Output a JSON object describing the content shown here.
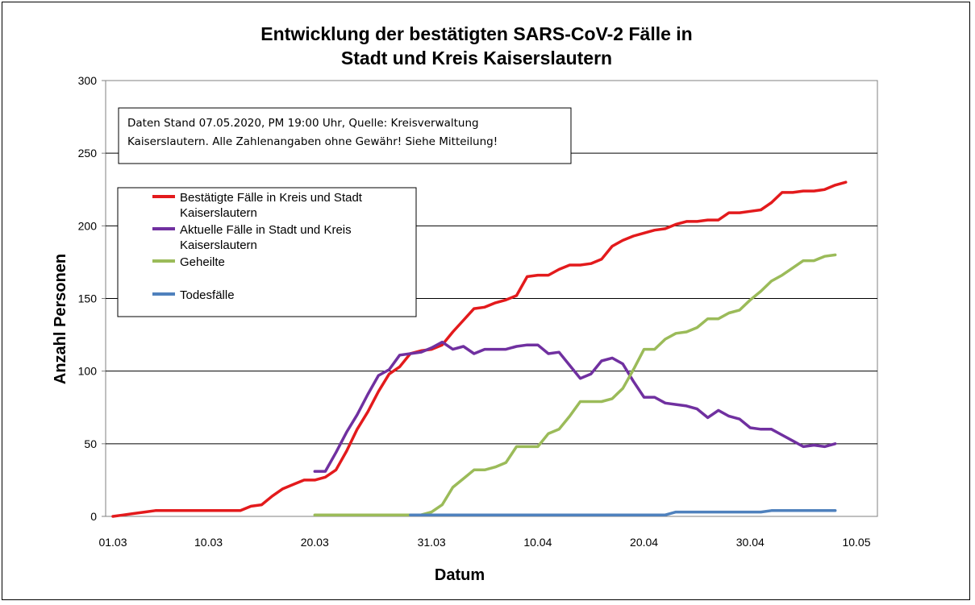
{
  "chart_data": {
    "type": "line",
    "title_line1": "Entwicklung der bestätigten SARS-CoV-2 Fälle in",
    "title_line2": "Stadt und Kreis Kaiserslautern",
    "xlabel": "Datum",
    "ylabel": "Anzahl Personen",
    "ylim": [
      0,
      300
    ],
    "y_ticks": [
      0,
      50,
      100,
      150,
      200,
      250,
      300
    ],
    "x_start": "2020-03-01",
    "x_end": "2020-05-10",
    "x_ticks": [
      {
        "label": "01.03",
        "date": "2020-03-01"
      },
      {
        "label": "10.03",
        "date": "2020-03-10"
      },
      {
        "label": "20.03",
        "date": "2020-03-20"
      },
      {
        "label": "31.03",
        "date": "2020-03-31"
      },
      {
        "label": "10.04",
        "date": "2020-04-10"
      },
      {
        "label": "20.04",
        "date": "2020-04-20"
      },
      {
        "label": "30.04",
        "date": "2020-04-30"
      },
      {
        "label": "10.05",
        "date": "2020-05-10"
      }
    ],
    "grid": "horizontal",
    "legend_position": "top-left",
    "note_line1": "Daten Stand 07.05.2020, PM 19:00 Uhr, Quelle: Kreisverwaltung",
    "note_line2": "Kaiserslautern. Alle Zahlenangaben ohne Gewähr! Siehe Mitteilung!",
    "series": [
      {
        "name": "Bestätigte Fälle in Kreis und Stadt Kaiserslautern",
        "legend_line1": "Bestätigte Fälle in Kreis und Stadt",
        "legend_line2": "Kaiserslautern",
        "color": "#e31a1c",
        "points": [
          [
            "2020-03-01",
            0
          ],
          [
            "2020-03-02",
            1
          ],
          [
            "2020-03-03",
            2
          ],
          [
            "2020-03-04",
            3
          ],
          [
            "2020-03-05",
            4
          ],
          [
            "2020-03-06",
            4
          ],
          [
            "2020-03-07",
            4
          ],
          [
            "2020-03-08",
            4
          ],
          [
            "2020-03-09",
            4
          ],
          [
            "2020-03-10",
            4
          ],
          [
            "2020-03-11",
            4
          ],
          [
            "2020-03-12",
            4
          ],
          [
            "2020-03-13",
            4
          ],
          [
            "2020-03-14",
            7
          ],
          [
            "2020-03-15",
            8
          ],
          [
            "2020-03-16",
            14
          ],
          [
            "2020-03-17",
            19
          ],
          [
            "2020-03-18",
            22
          ],
          [
            "2020-03-19",
            25
          ],
          [
            "2020-03-20",
            25
          ],
          [
            "2020-03-21",
            27
          ],
          [
            "2020-03-22",
            32
          ],
          [
            "2020-03-23",
            45
          ],
          [
            "2020-03-24",
            60
          ],
          [
            "2020-03-25",
            72
          ],
          [
            "2020-03-26",
            86
          ],
          [
            "2020-03-27",
            98
          ],
          [
            "2020-03-28",
            103
          ],
          [
            "2020-03-29",
            112
          ],
          [
            "2020-03-30",
            114
          ],
          [
            "2020-03-31",
            115
          ],
          [
            "2020-04-01",
            118
          ],
          [
            "2020-04-02",
            127
          ],
          [
            "2020-04-03",
            135
          ],
          [
            "2020-04-04",
            143
          ],
          [
            "2020-04-05",
            144
          ],
          [
            "2020-04-06",
            147
          ],
          [
            "2020-04-07",
            149
          ],
          [
            "2020-04-08",
            152
          ],
          [
            "2020-04-09",
            165
          ],
          [
            "2020-04-10",
            166
          ],
          [
            "2020-04-11",
            166
          ],
          [
            "2020-04-12",
            170
          ],
          [
            "2020-04-13",
            173
          ],
          [
            "2020-04-14",
            173
          ],
          [
            "2020-04-15",
            174
          ],
          [
            "2020-04-16",
            177
          ],
          [
            "2020-04-17",
            186
          ],
          [
            "2020-04-18",
            190
          ],
          [
            "2020-04-19",
            193
          ],
          [
            "2020-04-20",
            195
          ],
          [
            "2020-04-21",
            197
          ],
          [
            "2020-04-22",
            198
          ],
          [
            "2020-04-23",
            201
          ],
          [
            "2020-04-24",
            203
          ],
          [
            "2020-04-25",
            203
          ],
          [
            "2020-04-26",
            204
          ],
          [
            "2020-04-27",
            204
          ],
          [
            "2020-04-28",
            209
          ],
          [
            "2020-04-29",
            209
          ],
          [
            "2020-04-30",
            210
          ],
          [
            "2020-05-01",
            211
          ],
          [
            "2020-05-02",
            216
          ],
          [
            "2020-05-03",
            223
          ],
          [
            "2020-05-04",
            223
          ],
          [
            "2020-05-05",
            224
          ],
          [
            "2020-05-06",
            224
          ],
          [
            "2020-05-07",
            225
          ],
          [
            "2020-05-08",
            228
          ],
          [
            "2020-05-09",
            230
          ]
        ]
      },
      {
        "name": "Aktuelle Fälle in Stadt und Kreis Kaiserslautern",
        "legend_line1": "Aktuelle Fälle in Stadt und Kreis",
        "legend_line2": "Kaiserslautern",
        "color": "#7030a0",
        "points": [
          [
            "2020-03-20",
            31
          ],
          [
            "2020-03-21",
            31
          ],
          [
            "2020-03-22",
            44
          ],
          [
            "2020-03-23",
            58
          ],
          [
            "2020-03-24",
            70
          ],
          [
            "2020-03-25",
            84
          ],
          [
            "2020-03-26",
            97
          ],
          [
            "2020-03-27",
            101
          ],
          [
            "2020-03-28",
            111
          ],
          [
            "2020-03-29",
            112
          ],
          [
            "2020-03-30",
            113
          ],
          [
            "2020-03-31",
            116
          ],
          [
            "2020-04-01",
            120
          ],
          [
            "2020-04-02",
            115
          ],
          [
            "2020-04-03",
            117
          ],
          [
            "2020-04-04",
            112
          ],
          [
            "2020-04-05",
            115
          ],
          [
            "2020-04-06",
            115
          ],
          [
            "2020-04-07",
            115
          ],
          [
            "2020-04-08",
            117
          ],
          [
            "2020-04-09",
            118
          ],
          [
            "2020-04-10",
            118
          ],
          [
            "2020-04-11",
            112
          ],
          [
            "2020-04-12",
            113
          ],
          [
            "2020-04-13",
            104
          ],
          [
            "2020-04-14",
            95
          ],
          [
            "2020-04-15",
            98
          ],
          [
            "2020-04-16",
            107
          ],
          [
            "2020-04-17",
            109
          ],
          [
            "2020-04-18",
            105
          ],
          [
            "2020-04-19",
            93
          ],
          [
            "2020-04-20",
            82
          ],
          [
            "2020-04-21",
            82
          ],
          [
            "2020-04-22",
            78
          ],
          [
            "2020-04-23",
            77
          ],
          [
            "2020-04-24",
            76
          ],
          [
            "2020-04-25",
            74
          ],
          [
            "2020-04-26",
            68
          ],
          [
            "2020-04-27",
            73
          ],
          [
            "2020-04-28",
            69
          ],
          [
            "2020-04-29",
            67
          ],
          [
            "2020-04-30",
            61
          ],
          [
            "2020-05-01",
            60
          ],
          [
            "2020-05-02",
            60
          ],
          [
            "2020-05-03",
            56
          ],
          [
            "2020-05-04",
            52
          ],
          [
            "2020-05-05",
            48
          ],
          [
            "2020-05-06",
            49
          ],
          [
            "2020-05-07",
            48
          ],
          [
            "2020-05-08",
            50
          ]
        ]
      },
      {
        "name": "Geheilte",
        "legend_line1": "Geheilte",
        "legend_line2": "",
        "color": "#9bbb59",
        "points": [
          [
            "2020-03-20",
            1
          ],
          [
            "2020-03-21",
            1
          ],
          [
            "2020-03-22",
            1
          ],
          [
            "2020-03-23",
            1
          ],
          [
            "2020-03-24",
            1
          ],
          [
            "2020-03-25",
            1
          ],
          [
            "2020-03-26",
            1
          ],
          [
            "2020-03-27",
            1
          ],
          [
            "2020-03-28",
            1
          ],
          [
            "2020-03-29",
            1
          ],
          [
            "2020-03-30",
            1
          ],
          [
            "2020-03-31",
            3
          ],
          [
            "2020-04-01",
            8
          ],
          [
            "2020-04-02",
            20
          ],
          [
            "2020-04-03",
            26
          ],
          [
            "2020-04-04",
            32
          ],
          [
            "2020-04-05",
            32
          ],
          [
            "2020-04-06",
            34
          ],
          [
            "2020-04-07",
            37
          ],
          [
            "2020-04-08",
            48
          ],
          [
            "2020-04-09",
            48
          ],
          [
            "2020-04-10",
            48
          ],
          [
            "2020-04-11",
            57
          ],
          [
            "2020-04-12",
            60
          ],
          [
            "2020-04-13",
            69
          ],
          [
            "2020-04-14",
            79
          ],
          [
            "2020-04-15",
            79
          ],
          [
            "2020-04-16",
            79
          ],
          [
            "2020-04-17",
            81
          ],
          [
            "2020-04-18",
            88
          ],
          [
            "2020-04-19",
            101
          ],
          [
            "2020-04-20",
            115
          ],
          [
            "2020-04-21",
            115
          ],
          [
            "2020-04-22",
            122
          ],
          [
            "2020-04-23",
            126
          ],
          [
            "2020-04-24",
            127
          ],
          [
            "2020-04-25",
            130
          ],
          [
            "2020-04-26",
            136
          ],
          [
            "2020-04-27",
            136
          ],
          [
            "2020-04-28",
            140
          ],
          [
            "2020-04-29",
            142
          ],
          [
            "2020-04-30",
            149
          ],
          [
            "2020-05-01",
            155
          ],
          [
            "2020-05-02",
            162
          ],
          [
            "2020-05-03",
            166
          ],
          [
            "2020-05-04",
            171
          ],
          [
            "2020-05-05",
            176
          ],
          [
            "2020-05-06",
            176
          ],
          [
            "2020-05-07",
            179
          ],
          [
            "2020-05-08",
            180
          ]
        ]
      },
      {
        "name": "Todesfälle",
        "legend_line1": "Todesfälle",
        "legend_line2": "",
        "color": "#4f81bd",
        "points": [
          [
            "2020-03-29",
            1
          ],
          [
            "2020-03-30",
            1
          ],
          [
            "2020-03-31",
            1
          ],
          [
            "2020-04-01",
            1
          ],
          [
            "2020-04-02",
            1
          ],
          [
            "2020-04-03",
            1
          ],
          [
            "2020-04-04",
            1
          ],
          [
            "2020-04-05",
            1
          ],
          [
            "2020-04-06",
            1
          ],
          [
            "2020-04-07",
            1
          ],
          [
            "2020-04-08",
            1
          ],
          [
            "2020-04-09",
            1
          ],
          [
            "2020-04-10",
            1
          ],
          [
            "2020-04-11",
            1
          ],
          [
            "2020-04-12",
            1
          ],
          [
            "2020-04-13",
            1
          ],
          [
            "2020-04-14",
            1
          ],
          [
            "2020-04-15",
            1
          ],
          [
            "2020-04-16",
            1
          ],
          [
            "2020-04-17",
            1
          ],
          [
            "2020-04-18",
            1
          ],
          [
            "2020-04-19",
            1
          ],
          [
            "2020-04-20",
            1
          ],
          [
            "2020-04-21",
            1
          ],
          [
            "2020-04-22",
            1
          ],
          [
            "2020-04-23",
            3
          ],
          [
            "2020-04-24",
            3
          ],
          [
            "2020-04-25",
            3
          ],
          [
            "2020-04-26",
            3
          ],
          [
            "2020-04-27",
            3
          ],
          [
            "2020-04-28",
            3
          ],
          [
            "2020-04-29",
            3
          ],
          [
            "2020-04-30",
            3
          ],
          [
            "2020-05-01",
            3
          ],
          [
            "2020-05-02",
            4
          ],
          [
            "2020-05-03",
            4
          ],
          [
            "2020-05-04",
            4
          ],
          [
            "2020-05-05",
            4
          ],
          [
            "2020-05-06",
            4
          ],
          [
            "2020-05-07",
            4
          ],
          [
            "2020-05-08",
            4
          ]
        ]
      }
    ]
  }
}
